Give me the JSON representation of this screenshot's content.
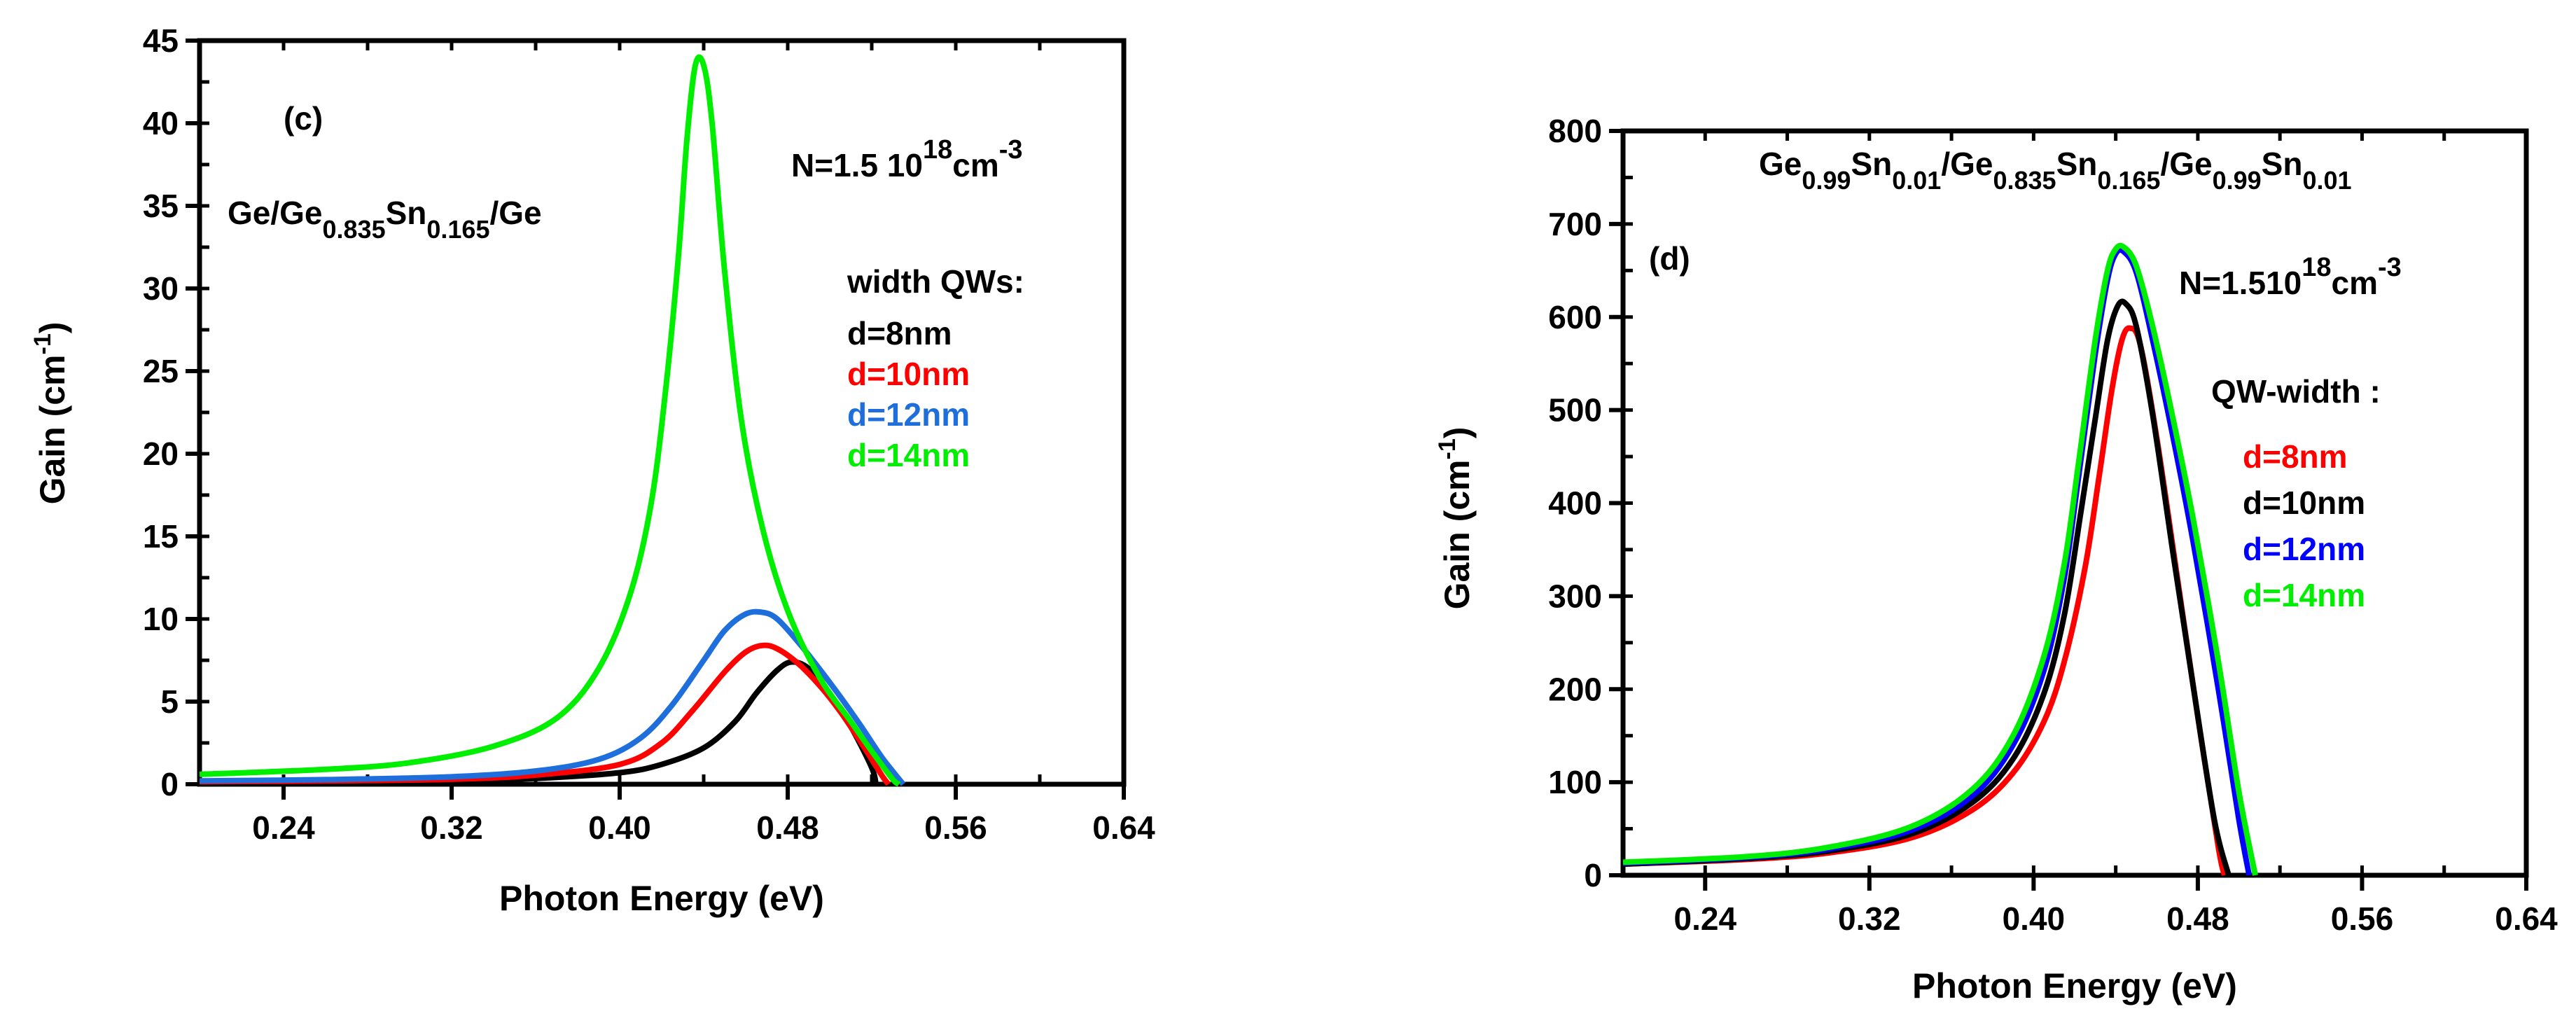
{
  "chart_data": [
    {
      "type": "line",
      "panel_label": "(c)",
      "structure": {
        "base": "Ge/Ge",
        "sub1": "0.835",
        "mid": "Sn",
        "sub2": "0.165",
        "tail": "/Ge"
      },
      "density": {
        "base": "N=1.5 10",
        "exp": "18",
        "unit": "cm",
        "unit_exp": "-3"
      },
      "legend_title": "width QWs:",
      "xlabel": "Photon Energy (eV)",
      "ylabel": {
        "base": "Gain (cm",
        "exp": "-1",
        "close": ")"
      },
      "xlim": [
        0.2,
        0.64
      ],
      "ylim": [
        0,
        45
      ],
      "xticks": [
        0.24,
        0.32,
        0.4,
        0.48,
        0.56,
        0.64
      ],
      "xtick_labels": [
        "0.24",
        "0.32",
        "0.40",
        "0.48",
        "0.56",
        "0.64"
      ],
      "yticks": [
        0,
        5,
        10,
        15,
        20,
        25,
        30,
        35,
        40,
        45
      ],
      "ytick_labels": [
        "0",
        "5",
        "10",
        "15",
        "20",
        "25",
        "30",
        "35",
        "40",
        "45"
      ],
      "series": [
        {
          "name": "d=8nm",
          "color": "#000000",
          "x": [
            0.2,
            0.26,
            0.32,
            0.36,
            0.4,
            0.42,
            0.44,
            0.455,
            0.465,
            0.475,
            0.482,
            0.49,
            0.5,
            0.51,
            0.52,
            0.522
          ],
          "y": [
            0.1,
            0.12,
            0.2,
            0.35,
            0.7,
            1.2,
            2.2,
            3.8,
            5.5,
            6.9,
            7.4,
            7.0,
            5.5,
            3.5,
            1.0,
            0
          ]
        },
        {
          "name": "d=10nm",
          "color": "#ff0000",
          "x": [
            0.2,
            0.26,
            0.32,
            0.36,
            0.4,
            0.42,
            0.435,
            0.45,
            0.46,
            0.468,
            0.475,
            0.485,
            0.495,
            0.505,
            0.515,
            0.525,
            0.528
          ],
          "y": [
            0.15,
            0.2,
            0.3,
            0.55,
            1.2,
            2.5,
            4.5,
            6.8,
            8.0,
            8.4,
            8.2,
            7.3,
            6.0,
            4.4,
            2.5,
            0.5,
            0
          ]
        },
        {
          "name": "d=12nm",
          "color": "#1e6fdc",
          "x": [
            0.2,
            0.26,
            0.32,
            0.36,
            0.39,
            0.41,
            0.425,
            0.44,
            0.45,
            0.46,
            0.468,
            0.475,
            0.485,
            0.495,
            0.505,
            0.515,
            0.525,
            0.535
          ],
          "y": [
            0.2,
            0.28,
            0.45,
            0.8,
            1.5,
            2.8,
            4.8,
            7.5,
            9.3,
            10.3,
            10.4,
            10.0,
            8.6,
            7.0,
            5.3,
            3.5,
            1.6,
            0
          ]
        },
        {
          "name": "d=14nm",
          "color": "#00ee00",
          "x": [
            0.2,
            0.26,
            0.3,
            0.34,
            0.37,
            0.39,
            0.405,
            0.415,
            0.422,
            0.428,
            0.432,
            0.436,
            0.44,
            0.444,
            0.45,
            0.458,
            0.468,
            0.48,
            0.495,
            0.51,
            0.52,
            0.53,
            0.533
          ],
          "y": [
            0.6,
            0.9,
            1.3,
            2.3,
            4.0,
            7.0,
            11.5,
            17.0,
            24.0,
            32.0,
            39.0,
            43.5,
            43.5,
            40.0,
            31.0,
            22.0,
            15.5,
            10.5,
            6.5,
            3.8,
            2.0,
            0.3,
            0
          ]
        }
      ]
    },
    {
      "type": "line",
      "panel_label": "(d)",
      "structure": {
        "p1": "Ge",
        "s1": "0.99",
        "p2": "Sn",
        "s2": "0.01",
        "p3": "/Ge",
        "s3": "0.835",
        "p4": "Sn",
        "s4": "0.165",
        "p5": "/Ge",
        "s5": "0.99",
        "p6": "Sn",
        "s6": "0.01"
      },
      "density": {
        "base": "N=1.510",
        "exp": "18",
        "unit": "cm",
        "unit_exp": "-3"
      },
      "legend_title": "QW-width :",
      "xlabel": "Photon Energy (eV)",
      "ylabel": {
        "base": "Gain (cm",
        "exp": "-1",
        "close": ")"
      },
      "xlim": [
        0.2,
        0.64
      ],
      "ylim": [
        0,
        800
      ],
      "xticks": [
        0.24,
        0.32,
        0.4,
        0.48,
        0.56,
        0.64
      ],
      "xtick_labels": [
        "0.24",
        "0.32",
        "0.40",
        "0.48",
        "0.56",
        "0.64"
      ],
      "yticks": [
        0,
        100,
        200,
        300,
        400,
        500,
        600,
        700,
        800
      ],
      "ytick_labels": [
        "0",
        "100",
        "200",
        "300",
        "400",
        "500",
        "600",
        "700",
        "800"
      ],
      "series": [
        {
          "name": "d=8nm",
          "color": "#ff0000",
          "x": [
            0.2,
            0.26,
            0.3,
            0.34,
            0.37,
            0.39,
            0.405,
            0.415,
            0.425,
            0.432,
            0.438,
            0.443,
            0.447,
            0.452,
            0.46,
            0.47,
            0.48,
            0.49,
            0.493
          ],
          "y": [
            12,
            17,
            24,
            40,
            70,
            110,
            165,
            230,
            330,
            430,
            520,
            575,
            588,
            570,
            470,
            320,
            170,
            30,
            0
          ]
        },
        {
          "name": "d=10nm",
          "color": "#000000",
          "x": [
            0.2,
            0.26,
            0.3,
            0.34,
            0.37,
            0.39,
            0.405,
            0.415,
            0.423,
            0.43,
            0.436,
            0.441,
            0.445,
            0.45,
            0.458,
            0.468,
            0.478,
            0.488,
            0.495
          ],
          "y": [
            12,
            18,
            26,
            44,
            78,
            125,
            195,
            280,
            390,
            490,
            575,
            612,
            614,
            590,
            495,
            345,
            200,
            60,
            0
          ]
        },
        {
          "name": "d=12nm",
          "color": "#0000ff",
          "x": [
            0.2,
            0.26,
            0.3,
            0.34,
            0.37,
            0.39,
            0.405,
            0.415,
            0.422,
            0.43,
            0.436,
            0.44,
            0.444,
            0.45,
            0.458,
            0.468,
            0.478,
            0.49,
            0.5,
            0.505
          ],
          "y": [
            13,
            19,
            28,
            48,
            85,
            140,
            220,
            320,
            430,
            560,
            640,
            668,
            670,
            648,
            575,
            470,
            355,
            200,
            60,
            0
          ]
        },
        {
          "name": "d=14nm",
          "color": "#00ee00",
          "x": [
            0.2,
            0.26,
            0.3,
            0.34,
            0.37,
            0.39,
            0.405,
            0.415,
            0.422,
            0.43,
            0.436,
            0.44,
            0.444,
            0.45,
            0.458,
            0.468,
            0.478,
            0.49,
            0.5,
            0.508
          ],
          "y": [
            14,
            20,
            30,
            52,
            92,
            150,
            235,
            335,
            445,
            575,
            650,
            673,
            675,
            655,
            590,
            490,
            380,
            230,
            90,
            0
          ]
        }
      ]
    }
  ]
}
